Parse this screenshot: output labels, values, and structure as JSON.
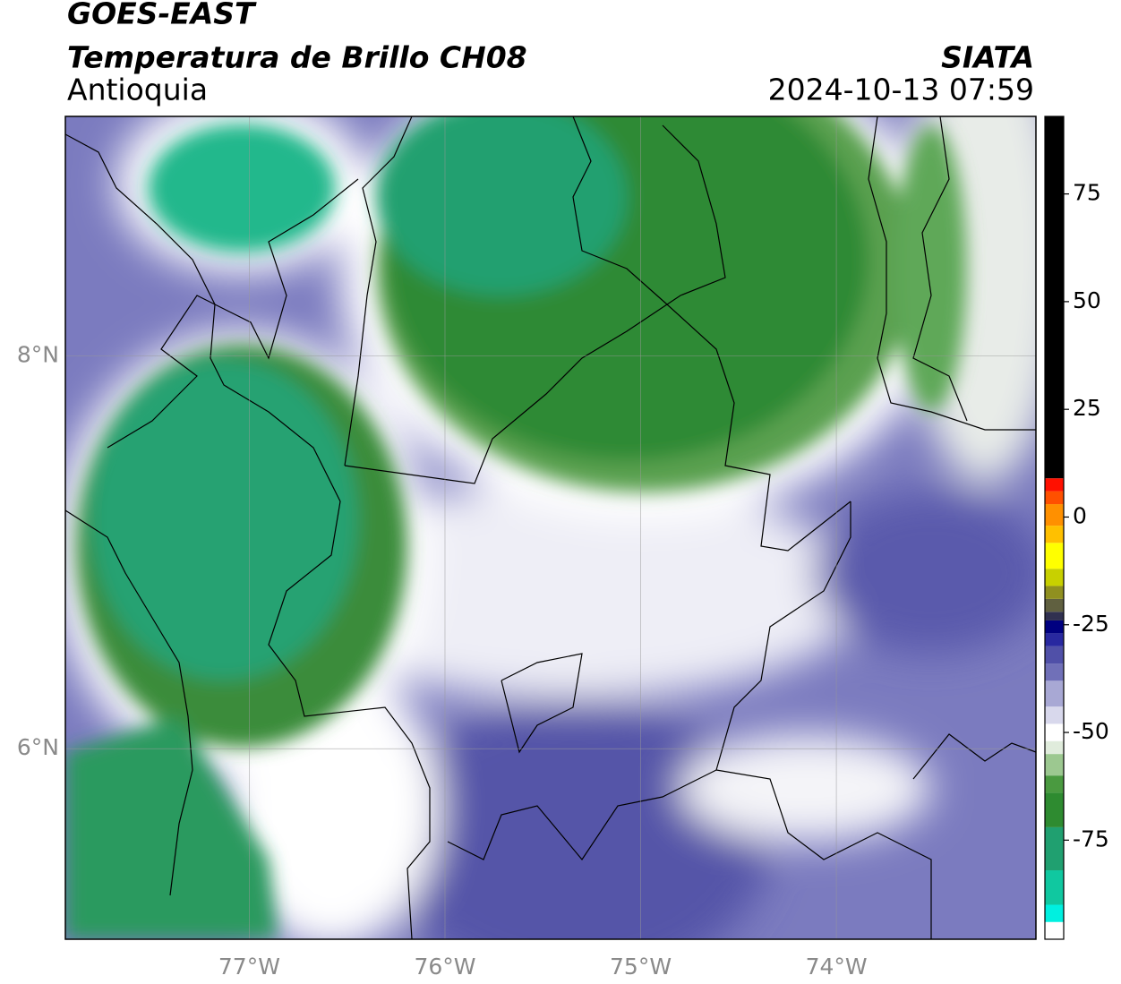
{
  "chart_data": {
    "type": "contour-map",
    "title": "GOES-EAST",
    "subtitle": "Temperatura de Brillo CH08",
    "region": "Antioquia",
    "source": "SIATA",
    "datetime": "2024-10-13 07:59",
    "xlim": [
      -77.94,
      -72.98
    ],
    "ylim": [
      5.03,
      9.22
    ],
    "xticks": [
      {
        "value": -77,
        "label": "77°W"
      },
      {
        "value": -76,
        "label": "76°W"
      },
      {
        "value": -75,
        "label": "75°W"
      },
      {
        "value": -74,
        "label": "74°W"
      }
    ],
    "yticks": [
      {
        "value": 6,
        "label": "6°N"
      },
      {
        "value": 8,
        "label": "8°N"
      }
    ],
    "grid": true,
    "colorbar": {
      "lim": [
        -98,
        93
      ],
      "ticks": [
        -75,
        -50,
        -25,
        0,
        25,
        50,
        75
      ],
      "stops": [
        [
          -98,
          "#ffffff"
        ],
        [
          -94,
          "#00f0e0"
        ],
        [
          -90,
          "#10c8a0"
        ],
        [
          -82,
          "#20a070"
        ],
        [
          -72,
          "#2e8b30"
        ],
        [
          -64,
          "#4a9a40"
        ],
        [
          -60,
          "#9cc890"
        ],
        [
          -55,
          "#e0ecdc"
        ],
        [
          -52,
          "#ffffff"
        ],
        [
          -48,
          "#d8d8ec"
        ],
        [
          -44,
          "#a8a8d4"
        ],
        [
          -38,
          "#7070b8"
        ],
        [
          -34,
          "#5050a8"
        ],
        [
          -30,
          "#2828a0"
        ],
        [
          -27,
          "#000080"
        ],
        [
          -24,
          "#303050"
        ],
        [
          -22,
          "#606040"
        ],
        [
          -19,
          "#909020"
        ],
        [
          -16,
          "#c8d000"
        ],
        [
          -12,
          "#ffff00"
        ],
        [
          -6,
          "#ffc000"
        ],
        [
          -2,
          "#ff9000"
        ],
        [
          3,
          "#ff5000"
        ],
        [
          6,
          "#ff1000"
        ],
        [
          9,
          "#000000"
        ]
      ]
    }
  }
}
